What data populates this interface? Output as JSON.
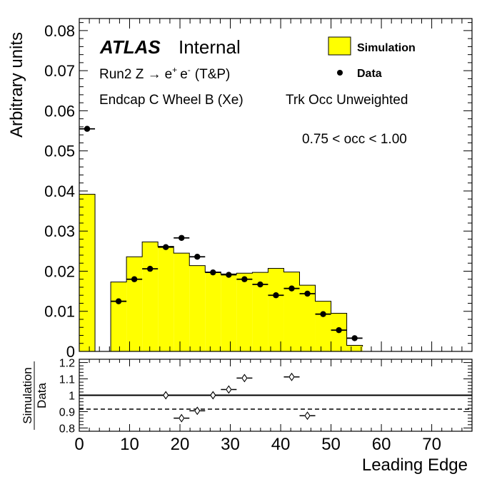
{
  "chart_data": [
    {
      "type": "bar",
      "panel": "main",
      "ylabel": "Arbitrary units",
      "xlim": [
        0,
        78
      ],
      "ylim": [
        0,
        0.083
      ],
      "yticks": [
        "0",
        "0.01",
        "0.02",
        "0.03",
        "0.04",
        "0.05",
        "0.06",
        "0.07",
        "0.08"
      ],
      "ytick_values": [
        0,
        0.01,
        0.02,
        0.03,
        0.04,
        0.05,
        0.06,
        0.07,
        0.08
      ],
      "bin_width": 3.125,
      "series": [
        {
          "name": "Simulation",
          "style": "histogram",
          "color": "#ffff00",
          "bin_edges": [
            0,
            3.125,
            6.25,
            9.375,
            12.5,
            15.625,
            18.75,
            21.875,
            25,
            28.125,
            31.25,
            34.375,
            37.5,
            40.625,
            43.75,
            46.875,
            50,
            53.125,
            56.25
          ],
          "values": [
            0.0392,
            0,
            0.0173,
            0.0236,
            0.0273,
            0.0262,
            0.0245,
            0.0214,
            0.0198,
            0.0193,
            0.0195,
            0.0197,
            0.0207,
            0.0198,
            0.0165,
            0.0125,
            0.0095,
            0.0015,
            0.0012
          ]
        },
        {
          "name": "Data",
          "style": "points",
          "color": "#000000",
          "x": [
            1.5625,
            7.8125,
            10.9375,
            14.0625,
            17.1875,
            20.3125,
            23.4375,
            26.5625,
            29.6875,
            32.8125,
            35.9375,
            39.0625,
            42.1875,
            45.3125,
            48.4375,
            51.5625,
            54.6875
          ],
          "values": [
            0.0555,
            0.0125,
            0.018,
            0.0206,
            0.026,
            0.0283,
            0.0236,
            0.0197,
            0.0191,
            0.018,
            0.0167,
            0.014,
            0.0157,
            0.0144,
            0.0093,
            0.0053,
            0.0033
          ]
        }
      ],
      "legend": {
        "placement": "top-right",
        "entries": [
          "Simulation",
          "Data"
        ]
      },
      "annotations": [
        "ATLAS",
        "Internal",
        "Run2 Z → e⁺ e⁻ (T&P)",
        "Endcap C Wheel B (Xe)",
        "Trk Occ Unweighted",
        "0.75 < occ < 1.00"
      ]
    },
    {
      "type": "scatter",
      "panel": "ratio",
      "xlabel": "Leading Edge",
      "ylabel": "Simulation / Data",
      "xlim": [
        0,
        78
      ],
      "ylim": [
        0.78,
        1.22
      ],
      "yticks": [
        "0.8",
        "0.9",
        "1",
        "1.1",
        "1.2"
      ],
      "ytick_values": [
        0.8,
        0.9,
        1.0,
        1.1,
        1.2
      ],
      "xticks": [
        "0",
        "10",
        "20",
        "30",
        "40",
        "50",
        "60",
        "70"
      ],
      "xtick_values": [
        0,
        10,
        20,
        30,
        40,
        50,
        60,
        70
      ],
      "reference_lines": [
        {
          "y": 1.0,
          "style": "solid"
        },
        {
          "y": 0.915,
          "style": "dashed"
        }
      ],
      "series": [
        {
          "name": "",
          "style": "open-diamond",
          "x": [
            17.1875,
            20.3125,
            23.4375,
            26.5625,
            29.6875,
            32.8125,
            42.1875,
            45.3125
          ],
          "values": [
            1.0,
            0.86,
            0.905,
            1.0,
            1.035,
            1.105,
            1.112,
            0.875
          ]
        }
      ]
    }
  ],
  "text": {
    "atlas": "ATLAS",
    "internal": "Internal",
    "process_prefix": "Run2 Z ",
    "arrow": "→",
    "electron": "e",
    "plus": "+",
    "minus": "-",
    "tp": "(T&P)",
    "region": "Endcap C Wheel B (Xe)",
    "weighting": "Trk Occ Unweighted",
    "occupancy": "0.75 < occ < 1.00",
    "legend_sim": "Simulation",
    "legend_data": "Data",
    "ylabel_main": "Arbitrary units",
    "ratio_num": "Simulation",
    "ratio_den": "Data",
    "xlabel": "Leading Edge"
  },
  "colors": {
    "simulation_fill": "#ffff00",
    "axis": "#000000"
  }
}
